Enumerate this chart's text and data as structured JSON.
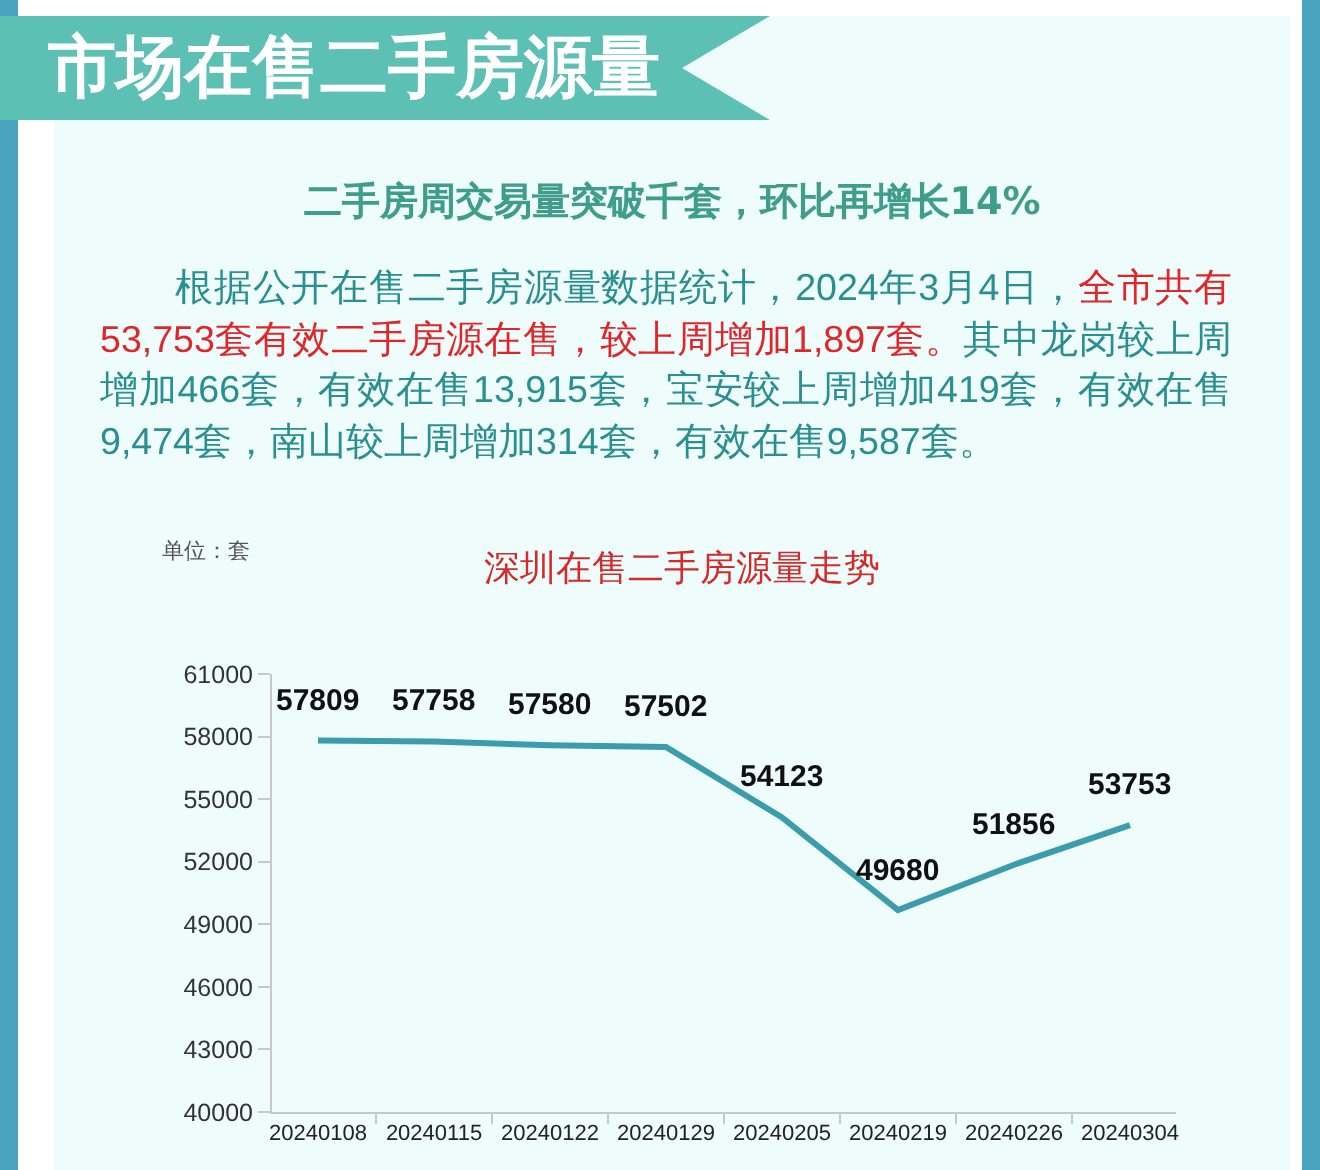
{
  "chart_data": {
    "type": "line",
    "title": "深圳在售二手房源量走势",
    "subtitle": "二手房周交易量突破千套，环比再增长14%",
    "ylabel": "单位：套",
    "annotations": [
      "市场在售二手房源量",
      "根据公开在售二手房源量数据统计，2024年3月4日，",
      "全市共有",
      "53,753套有效二手房源在售，较上周增加1,897套。",
      "其中龙岗较上周",
      "增加466套，有效在售13,915套，宝安较上周增加419套，有效在售9,474套，南山较上周增加314套，有效在售9,587套。"
    ],
    "categories": [
      "20240108",
      "20240115",
      "20240122",
      "20240129",
      "20240205",
      "20240219",
      "20240226",
      "20240304"
    ],
    "values": [
      57809,
      57758,
      57580,
      57502,
      54123,
      49680,
      51856,
      53753
    ],
    "color": "#3b9cab",
    "ylim": [
      40000,
      61000
    ],
    "yticks": [
      40000,
      43000,
      46000,
      49000,
      52000,
      55000,
      58000,
      61000
    ],
    "grid": false,
    "data_labels": true,
    "marker": "none",
    "line_style": "solid"
  }
}
